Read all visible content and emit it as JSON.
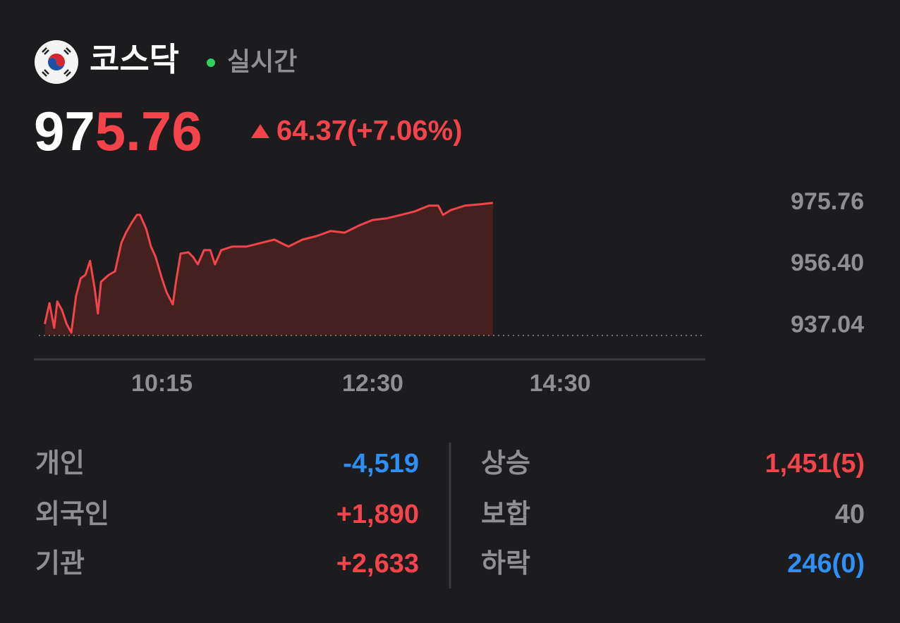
{
  "header": {
    "title": "코스닥",
    "status": "실시간"
  },
  "price": {
    "unchanged_part": "97",
    "changed_part": "5.76",
    "change": "64.37(+7.06%)"
  },
  "chart_data": {
    "type": "line",
    "color": "#f2444a",
    "fill_color": "#44201f",
    "x": [
      540,
      543,
      546,
      548,
      551,
      554,
      557,
      560,
      563,
      566,
      569,
      572,
      574,
      576,
      581,
      585,
      589,
      592,
      596,
      599,
      601,
      605,
      608,
      611,
      615,
      618,
      622,
      624,
      627,
      632,
      635,
      638,
      642,
      646,
      649,
      653,
      660,
      669,
      678,
      687,
      696,
      705,
      714,
      723,
      732,
      741,
      750,
      759,
      768,
      777,
      786,
      792,
      795,
      800,
      809,
      818,
      827
    ],
    "values": [
      937.6,
      944.2,
      936.4,
      944.7,
      942.0,
      937.6,
      934.9,
      946.4,
      952.0,
      953.1,
      957.5,
      948.7,
      940.9,
      950.9,
      953.1,
      954.2,
      963.1,
      966.4,
      969.8,
      972.0,
      972.0,
      967.5,
      962.0,
      958.7,
      952.0,
      947.6,
      943.8,
      950.9,
      959.8,
      960.2,
      958.7,
      956.4,
      960.9,
      960.9,
      956.4,
      960.9,
      962.0,
      962.0,
      963.1,
      964.2,
      962.0,
      964.2,
      965.3,
      966.9,
      966.4,
      968.6,
      970.4,
      970.9,
      972.0,
      973.1,
      974.9,
      974.9,
      972.0,
      973.5,
      974.9,
      975.3,
      975.76
    ],
    "xlim": [
      533,
      963
    ],
    "ylim": [
      934,
      977.3
    ],
    "xticks": [
      {
        "value": 615,
        "label": "10:15"
      },
      {
        "value": 750,
        "label": "12:30"
      },
      {
        "value": 870,
        "label": "14:30"
      }
    ],
    "yticks": [
      975.76,
      {
        "value": 956.4,
        "label": "956.40"
      },
      937.04
    ]
  },
  "investors": [
    {
      "label": "개인",
      "value": "-4,519"
    },
    {
      "label": "외국인",
      "value": "+1,890"
    },
    {
      "label": "기관",
      "value": "+2,633"
    }
  ],
  "breadth": [
    {
      "label": "상승",
      "value": "1,451(5)"
    },
    {
      "label": "보합",
      "value": "40"
    },
    {
      "label": "하락",
      "value": "246(0)"
    }
  ]
}
